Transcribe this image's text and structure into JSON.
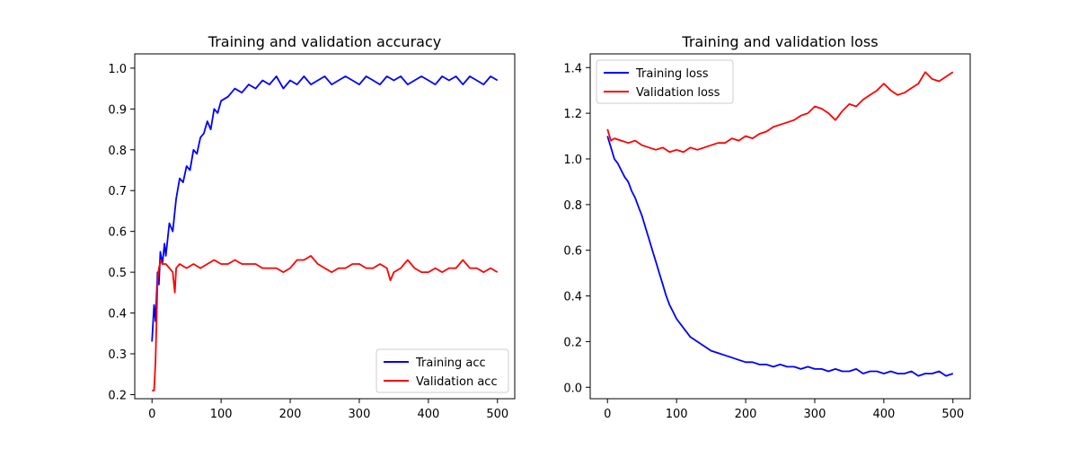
{
  "chart_data": [
    {
      "type": "line",
      "title": "Training and validation accuracy",
      "xlabel": "",
      "ylabel": "",
      "xlim": [
        -25,
        525
      ],
      "ylim": [
        0.19,
        1.035
      ],
      "xticks": [
        0,
        100,
        200,
        300,
        400,
        500
      ],
      "xtick_labels": [
        "0",
        "100",
        "200",
        "300",
        "400",
        "500"
      ],
      "yticks": [
        0.2,
        0.3,
        0.4,
        0.5,
        0.6,
        0.7,
        0.8,
        0.9,
        1.0
      ],
      "ytick_labels": [
        "0.2",
        "0.3",
        "0.4",
        "0.5",
        "0.6",
        "0.7",
        "0.8",
        "0.9",
        "1.0"
      ],
      "grid": false,
      "legend_position": "bottom-right",
      "series": [
        {
          "name": "Training acc",
          "color": "#0000ff",
          "x": [
            0,
            3,
            5,
            8,
            10,
            12,
            15,
            18,
            20,
            25,
            30,
            35,
            40,
            45,
            50,
            55,
            60,
            65,
            70,
            75,
            80,
            85,
            90,
            95,
            100,
            110,
            120,
            130,
            140,
            150,
            160,
            170,
            180,
            190,
            200,
            210,
            220,
            230,
            240,
            250,
            260,
            270,
            280,
            290,
            300,
            310,
            320,
            330,
            340,
            350,
            360,
            370,
            380,
            390,
            400,
            410,
            420,
            430,
            440,
            450,
            460,
            470,
            480,
            490,
            500
          ],
          "values": [
            0.33,
            0.42,
            0.38,
            0.5,
            0.47,
            0.55,
            0.52,
            0.57,
            0.54,
            0.62,
            0.6,
            0.68,
            0.73,
            0.72,
            0.76,
            0.75,
            0.8,
            0.79,
            0.83,
            0.84,
            0.87,
            0.85,
            0.9,
            0.89,
            0.92,
            0.93,
            0.95,
            0.94,
            0.96,
            0.95,
            0.97,
            0.96,
            0.98,
            0.95,
            0.97,
            0.96,
            0.98,
            0.96,
            0.97,
            0.98,
            0.96,
            0.97,
            0.98,
            0.97,
            0.96,
            0.98,
            0.97,
            0.96,
            0.98,
            0.97,
            0.98,
            0.96,
            0.97,
            0.98,
            0.97,
            0.96,
            0.98,
            0.97,
            0.98,
            0.96,
            0.98,
            0.97,
            0.96,
            0.98,
            0.97
          ]
        },
        {
          "name": "Validation acc",
          "color": "#ff0000",
          "x": [
            0,
            3,
            5,
            8,
            10,
            13,
            15,
            20,
            25,
            30,
            33,
            35,
            40,
            50,
            60,
            70,
            80,
            90,
            100,
            110,
            120,
            130,
            140,
            150,
            160,
            170,
            180,
            190,
            200,
            210,
            220,
            230,
            240,
            250,
            260,
            270,
            280,
            290,
            300,
            310,
            320,
            330,
            340,
            345,
            350,
            360,
            370,
            380,
            390,
            400,
            410,
            420,
            430,
            440,
            450,
            460,
            470,
            480,
            490,
            500
          ],
          "values": [
            0.21,
            0.21,
            0.28,
            0.48,
            0.51,
            0.53,
            0.52,
            0.52,
            0.51,
            0.5,
            0.45,
            0.51,
            0.52,
            0.51,
            0.52,
            0.51,
            0.52,
            0.53,
            0.52,
            0.52,
            0.53,
            0.52,
            0.52,
            0.52,
            0.51,
            0.51,
            0.51,
            0.5,
            0.51,
            0.53,
            0.53,
            0.54,
            0.52,
            0.51,
            0.5,
            0.51,
            0.51,
            0.52,
            0.52,
            0.51,
            0.51,
            0.52,
            0.51,
            0.48,
            0.5,
            0.51,
            0.53,
            0.51,
            0.5,
            0.5,
            0.51,
            0.5,
            0.51,
            0.51,
            0.53,
            0.51,
            0.51,
            0.5,
            0.51,
            0.5
          ]
        }
      ]
    },
    {
      "type": "line",
      "title": "Training and validation loss",
      "xlabel": "",
      "ylabel": "",
      "xlim": [
        -25,
        525
      ],
      "ylim": [
        -0.05,
        1.46
      ],
      "xticks": [
        0,
        100,
        200,
        300,
        400,
        500
      ],
      "xtick_labels": [
        "0",
        "100",
        "200",
        "300",
        "400",
        "500"
      ],
      "yticks": [
        0.0,
        0.2,
        0.4,
        0.6,
        0.8,
        1.0,
        1.2,
        1.4
      ],
      "ytick_labels": [
        "0.0",
        "0.2",
        "0.4",
        "0.6",
        "0.8",
        "1.0",
        "1.2",
        "1.4"
      ],
      "grid": false,
      "legend_position": "top-left",
      "series": [
        {
          "name": "Training loss",
          "color": "#0000ff",
          "x": [
            0,
            5,
            10,
            15,
            20,
            25,
            30,
            35,
            40,
            45,
            50,
            55,
            60,
            65,
            70,
            75,
            80,
            85,
            90,
            95,
            100,
            110,
            120,
            130,
            140,
            150,
            160,
            170,
            180,
            190,
            200,
            210,
            220,
            230,
            240,
            250,
            260,
            270,
            280,
            290,
            300,
            310,
            320,
            330,
            340,
            350,
            360,
            370,
            380,
            390,
            400,
            410,
            420,
            430,
            440,
            450,
            460,
            470,
            480,
            490,
            500
          ],
          "values": [
            1.1,
            1.05,
            1.0,
            0.98,
            0.95,
            0.92,
            0.9,
            0.86,
            0.83,
            0.79,
            0.75,
            0.7,
            0.65,
            0.6,
            0.55,
            0.5,
            0.45,
            0.4,
            0.36,
            0.33,
            0.3,
            0.26,
            0.22,
            0.2,
            0.18,
            0.16,
            0.15,
            0.14,
            0.13,
            0.12,
            0.11,
            0.11,
            0.1,
            0.1,
            0.09,
            0.1,
            0.09,
            0.09,
            0.08,
            0.09,
            0.08,
            0.08,
            0.07,
            0.08,
            0.07,
            0.07,
            0.08,
            0.06,
            0.07,
            0.07,
            0.06,
            0.07,
            0.06,
            0.06,
            0.07,
            0.05,
            0.06,
            0.06,
            0.07,
            0.05,
            0.06
          ]
        },
        {
          "name": "Validation loss",
          "color": "#ff0000",
          "x": [
            0,
            5,
            10,
            20,
            30,
            40,
            50,
            60,
            70,
            80,
            90,
            100,
            110,
            120,
            130,
            140,
            150,
            160,
            170,
            180,
            190,
            200,
            210,
            220,
            230,
            240,
            250,
            260,
            270,
            280,
            290,
            300,
            310,
            320,
            330,
            340,
            350,
            360,
            370,
            380,
            390,
            400,
            410,
            420,
            430,
            440,
            450,
            460,
            470,
            480,
            490,
            500
          ],
          "values": [
            1.13,
            1.08,
            1.09,
            1.08,
            1.07,
            1.08,
            1.06,
            1.05,
            1.04,
            1.05,
            1.03,
            1.04,
            1.03,
            1.05,
            1.04,
            1.05,
            1.06,
            1.07,
            1.07,
            1.09,
            1.08,
            1.1,
            1.09,
            1.11,
            1.12,
            1.14,
            1.15,
            1.16,
            1.17,
            1.19,
            1.2,
            1.23,
            1.22,
            1.2,
            1.17,
            1.21,
            1.24,
            1.23,
            1.26,
            1.28,
            1.3,
            1.33,
            1.3,
            1.28,
            1.29,
            1.31,
            1.33,
            1.38,
            1.35,
            1.34,
            1.36,
            1.38
          ]
        }
      ]
    }
  ]
}
